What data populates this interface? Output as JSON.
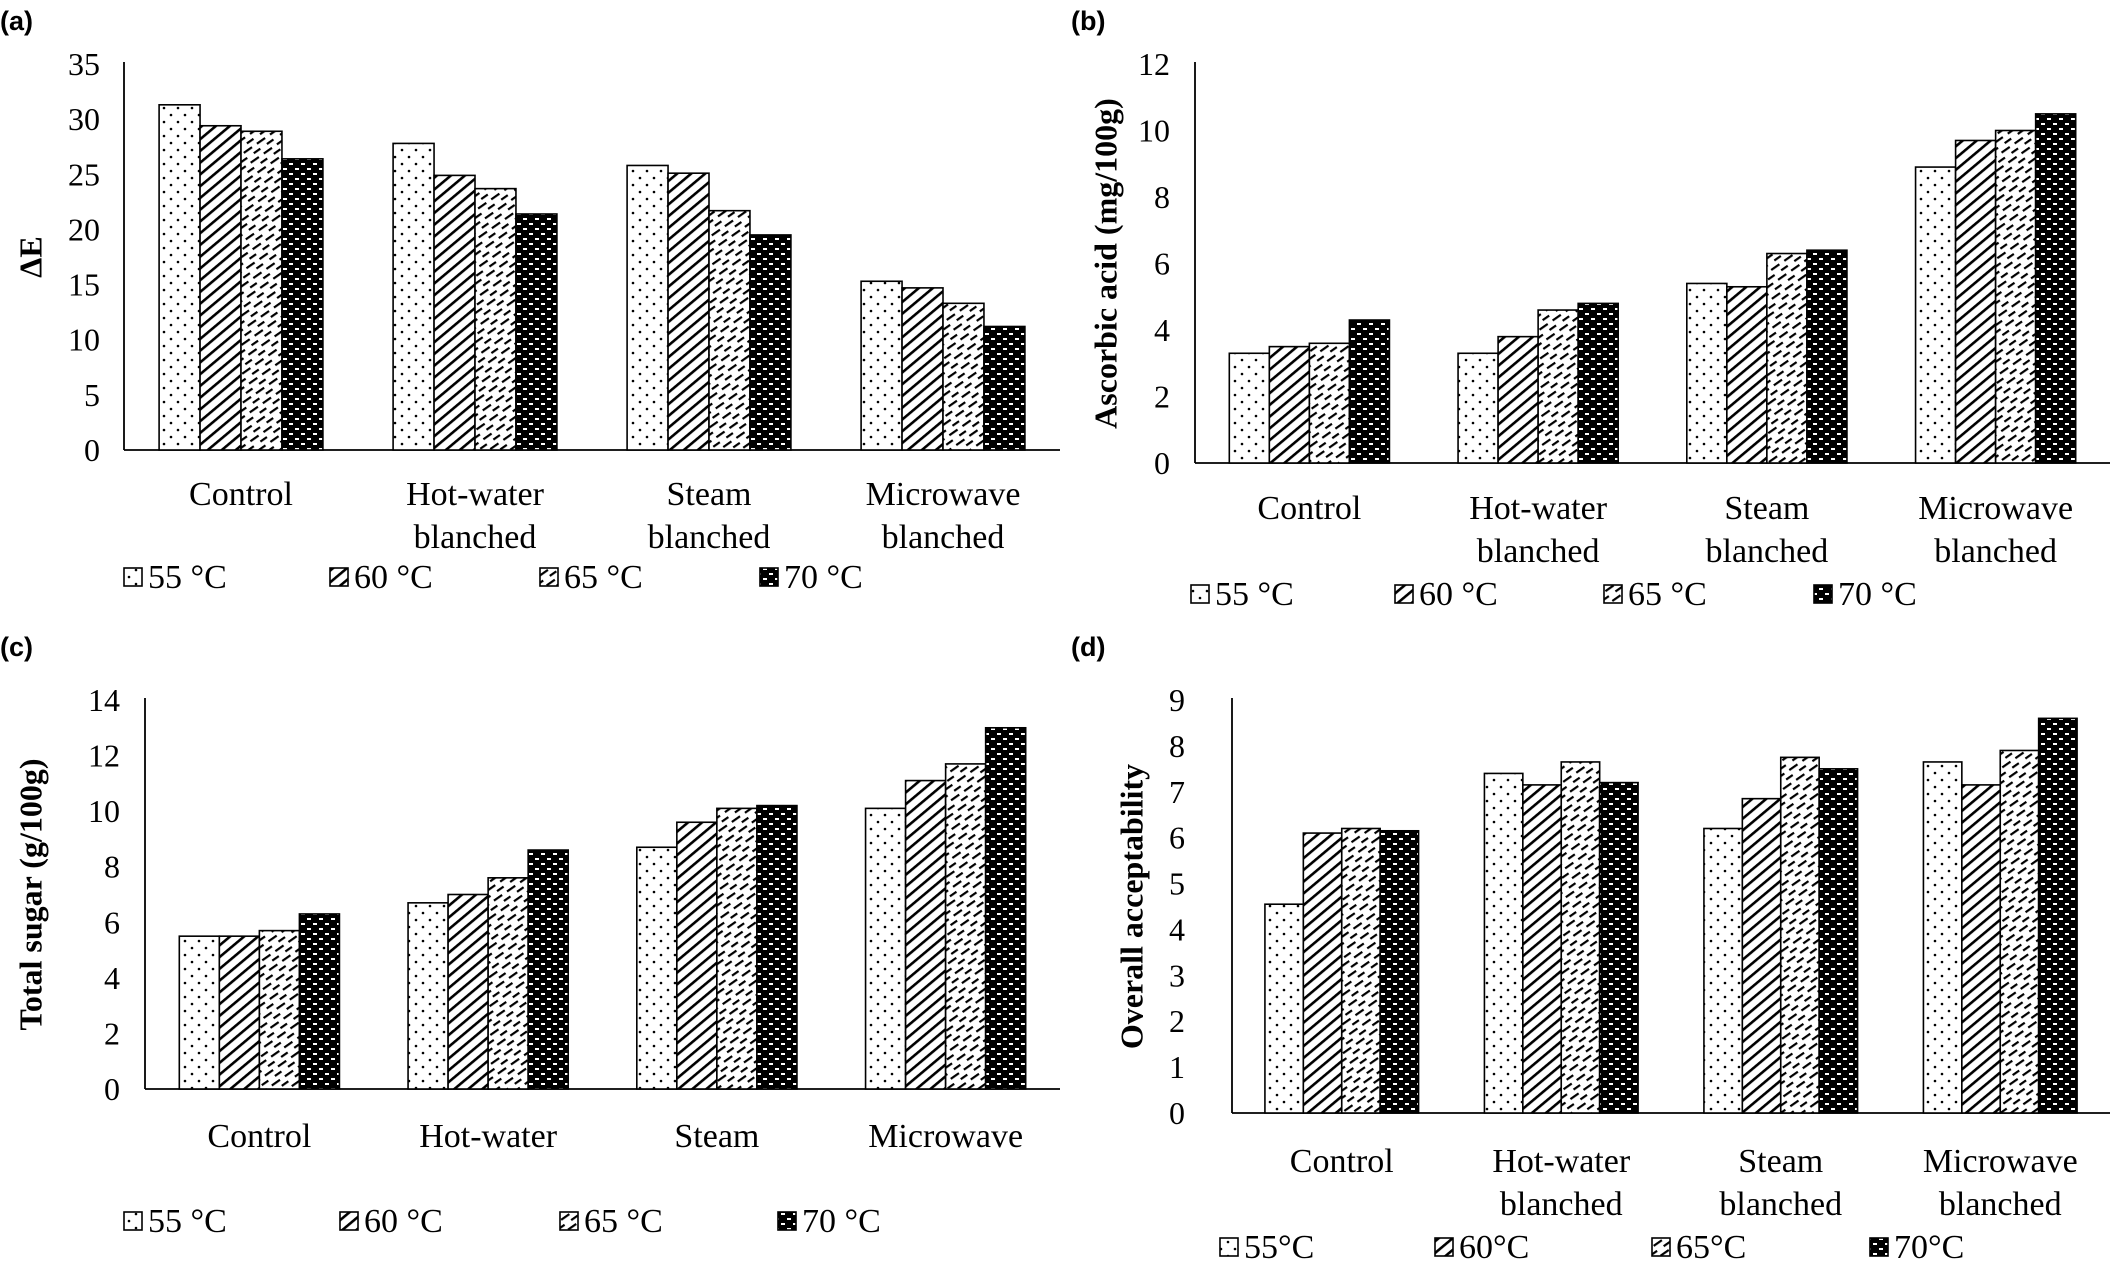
{
  "chart_data": [
    {
      "panel": "(a)",
      "type": "bar",
      "ylabel": "ΔE",
      "ylim": [
        0,
        35
      ],
      "yticks": [
        0,
        5,
        10,
        15,
        20,
        25,
        30,
        35
      ],
      "categories": [
        [
          "Control"
        ],
        [
          "Hot-water",
          "blanched"
        ],
        [
          "Steam",
          "blanched"
        ],
        [
          "Microwave",
          "blanched"
        ]
      ],
      "series": [
        {
          "name": "55 °C",
          "values": [
            31.3,
            27.8,
            25.8,
            15.3
          ]
        },
        {
          "name": "60 °C",
          "values": [
            29.4,
            24.9,
            25.1,
            14.7
          ]
        },
        {
          "name": "65 °C",
          "values": [
            28.9,
            23.7,
            21.7,
            13.3
          ]
        },
        {
          "name": "70 °C",
          "values": [
            26.4,
            21.4,
            19.5,
            11.2
          ]
        }
      ],
      "grid": false,
      "legend": "bottom"
    },
    {
      "panel": "(b)",
      "type": "bar",
      "ylabel": "Ascorbic acid (mg/100g)",
      "ylim": [
        0,
        12
      ],
      "yticks": [
        0,
        2,
        4,
        6,
        8,
        10,
        12
      ],
      "categories": [
        [
          "Control"
        ],
        [
          "Hot-water",
          "blanched"
        ],
        [
          "Steam",
          "blanched"
        ],
        [
          "Microwave",
          "blanched"
        ]
      ],
      "series": [
        {
          "name": "55 °C",
          "values": [
            3.3,
            3.3,
            5.4,
            8.9
          ]
        },
        {
          "name": "60 °C",
          "values": [
            3.5,
            3.8,
            5.3,
            9.7
          ]
        },
        {
          "name": "65 °C",
          "values": [
            3.6,
            4.6,
            6.3,
            10.0
          ]
        },
        {
          "name": "70 °C",
          "values": [
            4.3,
            4.8,
            6.4,
            10.5
          ]
        }
      ],
      "grid": false,
      "legend": "bottom"
    },
    {
      "panel": "(c)",
      "type": "bar",
      "ylabel": "Total sugar (g/100g)",
      "ylim": [
        0,
        14
      ],
      "yticks": [
        0,
        2,
        4,
        6,
        8,
        10,
        12,
        14
      ],
      "categories": [
        [
          "Control"
        ],
        [
          "Hot-water"
        ],
        [
          "Steam"
        ],
        [
          "Microwave"
        ]
      ],
      "series": [
        {
          "name": "55 °C",
          "values": [
            5.5,
            6.7,
            8.7,
            10.1
          ]
        },
        {
          "name": "60 °C",
          "values": [
            5.5,
            7.0,
            9.6,
            11.1
          ]
        },
        {
          "name": "65 °C",
          "values": [
            5.7,
            7.6,
            10.1,
            11.7
          ]
        },
        {
          "name": "70 °C",
          "values": [
            6.3,
            8.6,
            10.2,
            13.0
          ]
        }
      ],
      "grid": false,
      "legend": "bottom"
    },
    {
      "panel": "(d)",
      "type": "bar",
      "ylabel": "Overall acceptability",
      "ylim": [
        0,
        9
      ],
      "yticks": [
        0,
        1,
        2,
        3,
        4,
        5,
        6,
        7,
        8,
        9
      ],
      "categories": [
        [
          "Control"
        ],
        [
          "Hot-water",
          "blanched"
        ],
        [
          "Steam",
          "blanched"
        ],
        [
          "Microwave",
          "blanched"
        ]
      ],
      "series": [
        {
          "name": "55°C",
          "values": [
            4.55,
            7.4,
            6.2,
            7.65
          ]
        },
        {
          "name": "60°C",
          "values": [
            6.1,
            7.15,
            6.85,
            7.15
          ]
        },
        {
          "name": "65°C",
          "values": [
            6.2,
            7.65,
            7.75,
            7.9
          ]
        },
        {
          "name": "70°C",
          "values": [
            6.15,
            7.2,
            7.5,
            8.6
          ]
        }
      ],
      "grid": false,
      "legend": "bottom"
    }
  ]
}
